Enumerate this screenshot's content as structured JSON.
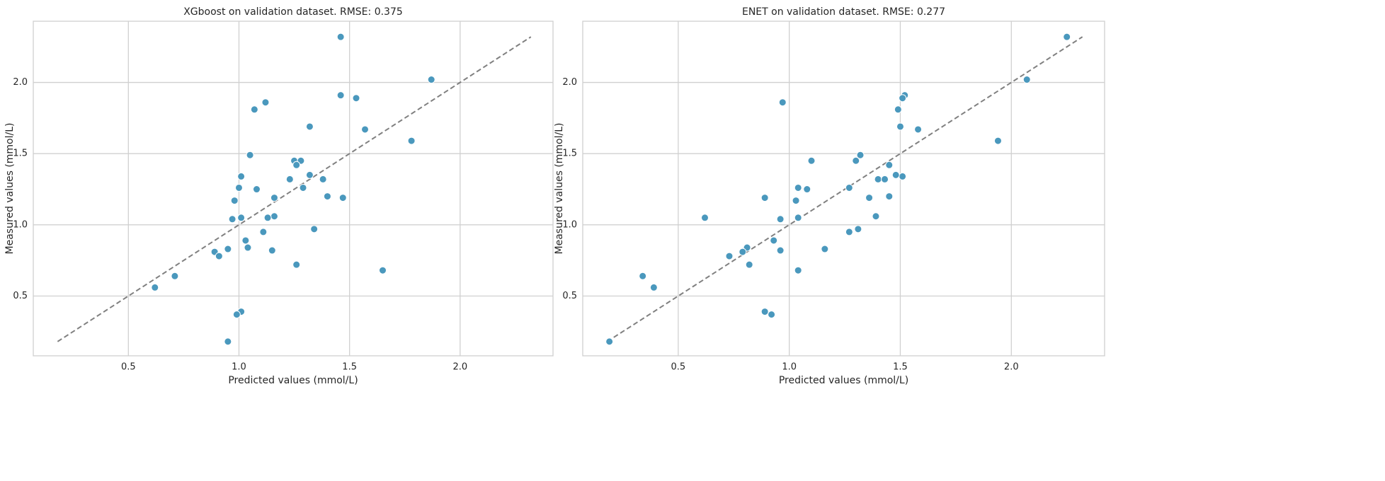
{
  "chart_data": [
    {
      "type": "scatter",
      "title": "XGboost on validation dataset. RMSE: 0.375",
      "xlabel": "Predicted values (mmol/L)",
      "ylabel": "Measured values (mmol/L)",
      "color": "#4a98bd",
      "grid": true,
      "xlim": [
        0.07,
        2.42
      ],
      "ylim": [
        0.08,
        2.43
      ],
      "xticks": [
        0.5,
        {
          "value": 1,
          "label": "1.0"
        },
        1.5,
        {
          "value": 2,
          "label": "2.0"
        }
      ],
      "yticks": [
        0.5,
        {
          "value": 1,
          "label": "1.0"
        },
        1.5,
        {
          "value": 2,
          "label": "2.0"
        }
      ],
      "identity_line": {
        "x": [
          0.18,
          2.32
        ],
        "y": [
          0.18,
          2.32
        ]
      },
      "x": [
        1.46,
        1.87,
        1.46,
        1.53,
        1.12,
        1.07,
        1.57,
        1.32,
        1.78,
        1.05,
        1.25,
        1.28,
        1.26,
        1.01,
        1.32,
        1.23,
        1.38,
        1.0,
        1.08,
        1.29,
        1.4,
        1.47,
        1.16,
        0.98,
        1.16,
        1.13,
        1.01,
        0.97,
        1.34,
        1.11,
        1.03,
        1.04,
        0.95,
        1.15,
        0.89,
        0.91,
        1.26,
        1.65,
        0.71,
        0.62,
        1.01,
        0.99,
        0.95
      ],
      "y": [
        2.32,
        2.02,
        1.91,
        1.89,
        1.86,
        1.81,
        1.67,
        1.69,
        1.59,
        1.49,
        1.45,
        1.45,
        1.42,
        1.34,
        1.35,
        1.32,
        1.32,
        1.26,
        1.25,
        1.26,
        1.2,
        1.19,
        1.19,
        1.17,
        1.06,
        1.05,
        1.05,
        1.04,
        0.97,
        0.95,
        0.89,
        0.84,
        0.83,
        0.82,
        0.81,
        0.78,
        0.72,
        0.68,
        0.64,
        0.56,
        0.39,
        0.37,
        0.18
      ]
    },
    {
      "type": "scatter",
      "title": "ENET on validation dataset. RMSE: 0.277",
      "xlabel": "Predicted values (mmol/L)",
      "ylabel": "Measured values (mmol/L)",
      "color": "#4a98bd",
      "grid": true,
      "xlim": [
        0.07,
        2.42
      ],
      "ylim": [
        0.08,
        2.43
      ],
      "xticks": [
        0.5,
        {
          "value": 1,
          "label": "1.0"
        },
        1.5,
        {
          "value": 2,
          "label": "2.0"
        }
      ],
      "yticks": [
        0.5,
        {
          "value": 1,
          "label": "1.0"
        },
        1.5,
        {
          "value": 2,
          "label": "2.0"
        }
      ],
      "identity_line": {
        "x": [
          0.18,
          2.32
        ],
        "y": [
          0.18,
          2.32
        ]
      },
      "x": [
        2.25,
        2.07,
        1.52,
        1.51,
        0.97,
        1.49,
        1.58,
        1.5,
        1.94,
        1.32,
        1.1,
        1.3,
        1.45,
        1.51,
        1.48,
        1.4,
        1.43,
        1.04,
        1.08,
        1.27,
        1.45,
        1.36,
        0.89,
        1.03,
        1.39,
        0.62,
        1.04,
        0.96,
        1.31,
        1.27,
        0.93,
        0.81,
        1.16,
        0.96,
        0.79,
        0.73,
        0.82,
        1.04,
        0.34,
        0.39,
        0.89,
        0.92,
        0.19
      ],
      "y": [
        2.32,
        2.02,
        1.91,
        1.89,
        1.86,
        1.81,
        1.67,
        1.69,
        1.59,
        1.49,
        1.45,
        1.45,
        1.42,
        1.34,
        1.35,
        1.32,
        1.32,
        1.26,
        1.25,
        1.26,
        1.2,
        1.19,
        1.19,
        1.17,
        1.06,
        1.05,
        1.05,
        1.04,
        0.97,
        0.95,
        0.89,
        0.84,
        0.83,
        0.82,
        0.81,
        0.78,
        0.72,
        0.68,
        0.64,
        0.56,
        0.39,
        0.37,
        0.18
      ]
    }
  ]
}
